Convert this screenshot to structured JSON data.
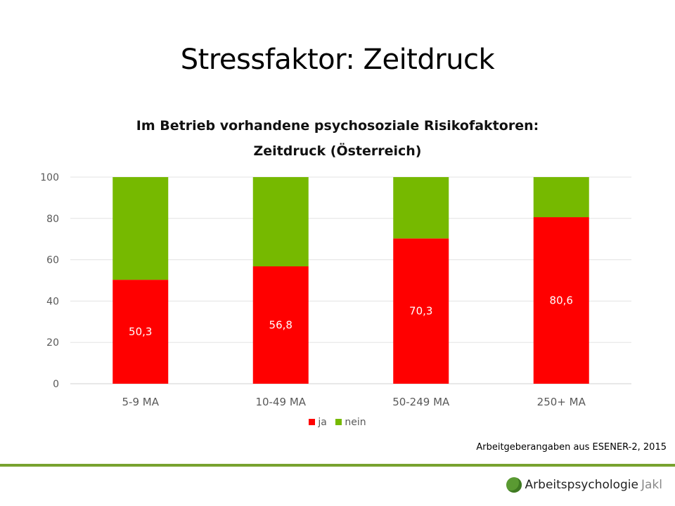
{
  "slide": {
    "title": "Stressfaktor: Zeitdruck",
    "source": "Arbeitgeberangaben aus ESENER-2, 2015",
    "brand_name": "Arbeitspsychologie",
    "brand_suffix": "Jakl",
    "brand_color": "#78a22f",
    "brand_icon": "green-circle-logo-icon"
  },
  "chart_data": {
    "type": "bar",
    "stacked": true,
    "title_line1": "Im Betrieb vorhandene psychosoziale Risikofaktoren:",
    "title_line2": "Zeitdruck (Österreich)",
    "categories": [
      "5-9 MA",
      "10-49 MA",
      "50-249 MA",
      "250+ MA"
    ],
    "series": [
      {
        "name": "ja",
        "color": "#ff0000",
        "values": [
          50.3,
          56.8,
          70.3,
          80.6
        ],
        "labels": [
          "50,3",
          "56,8",
          "70,3",
          "80,6"
        ]
      },
      {
        "name": "nein",
        "color": "#76b900",
        "values": [
          49.7,
          43.2,
          29.7,
          19.4
        ]
      }
    ],
    "ylim": [
      0,
      100
    ],
    "yticks": [
      0,
      20,
      40,
      60,
      80,
      100
    ],
    "grid": true,
    "legend_position": "bottom"
  }
}
